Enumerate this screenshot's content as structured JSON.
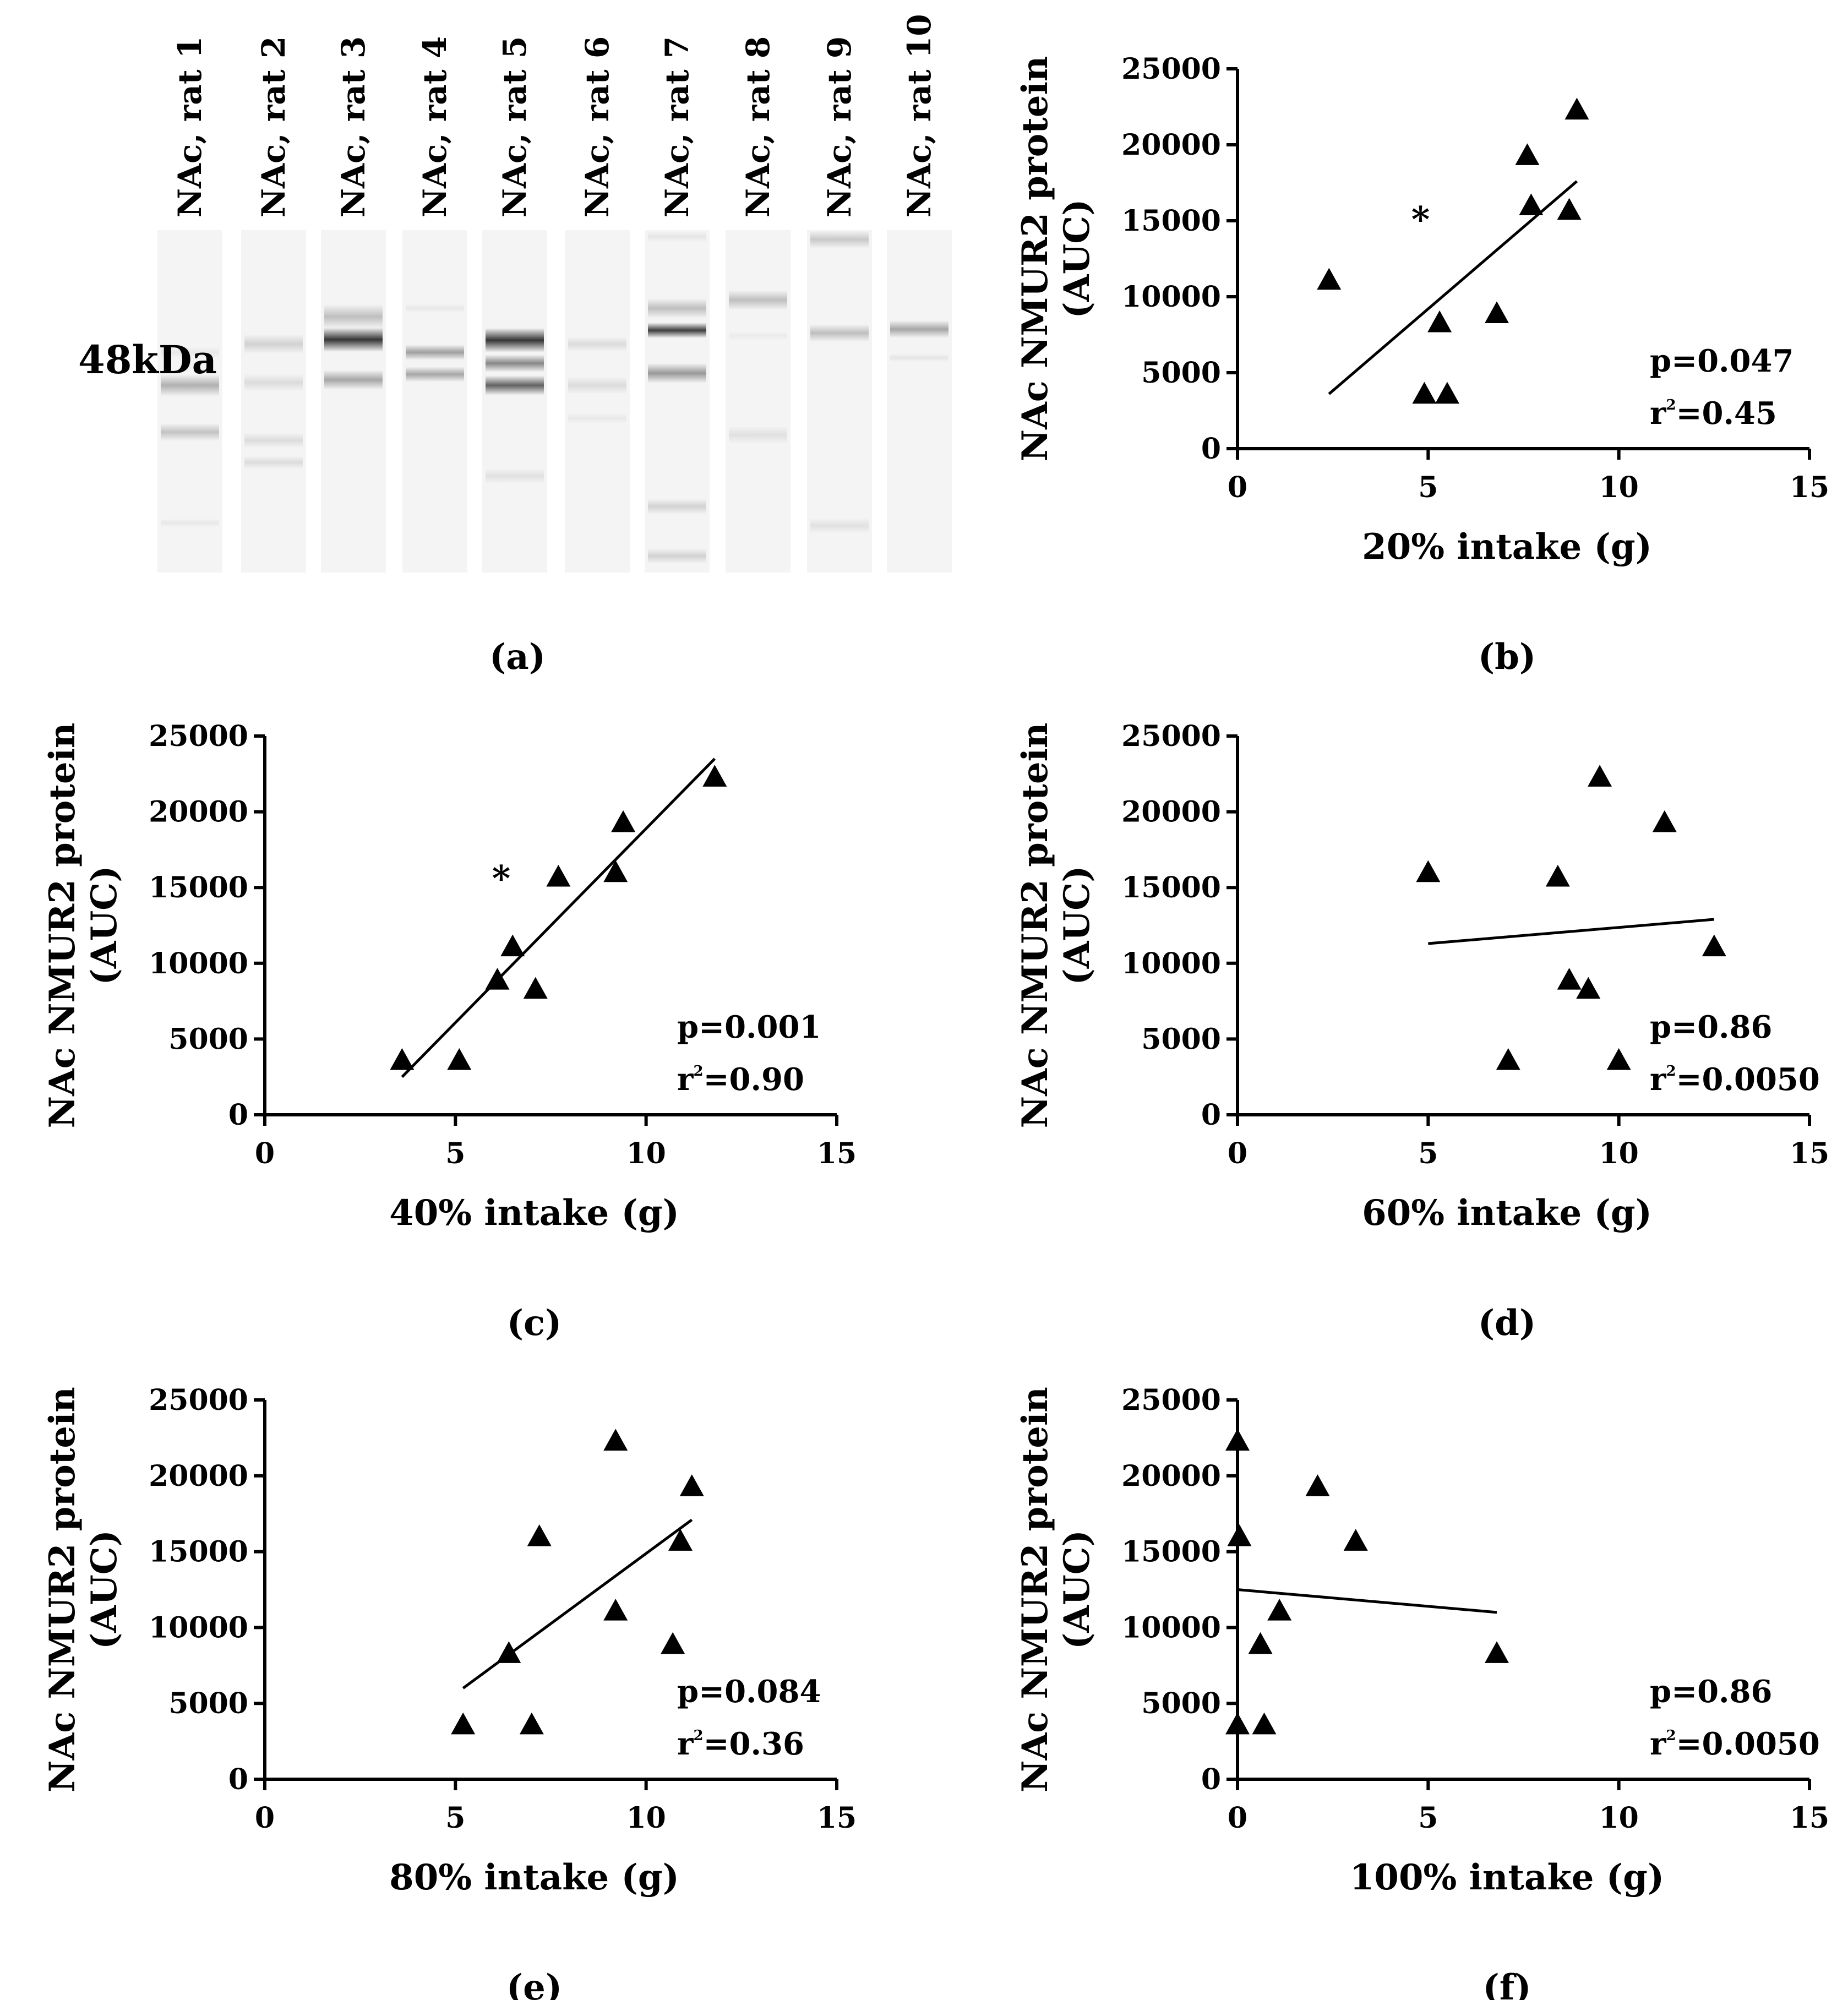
{
  "blot": {
    "size_marker": "48kDa",
    "panel_label": "(a)",
    "lane_labels": [
      "NAc, rat 1",
      "NAc, rat 2",
      "NAc, rat 3",
      "NAc, rat 4",
      "NAc, rat 5",
      "NAc, rat 6",
      "NAc, rat 7",
      "NAc, rat 8",
      "NAc, rat 9",
      "NAc, rat 10"
    ]
  },
  "chart_data": [
    {
      "type": "scatter",
      "panel_label": "(b)",
      "ylabel_line1": "NAc NMUR2 protein",
      "ylabel_line2": "(AUC)",
      "xlabel": "20% intake (g)",
      "xlim": [
        0,
        15
      ],
      "ylim": [
        0,
        25000
      ],
      "xticks": [
        "0",
        "5",
        "10",
        "15"
      ],
      "yticks": [
        "0",
        "5000",
        "10000",
        "15000",
        "20000",
        "25000"
      ],
      "points": [
        [
          2.4,
          11100
        ],
        [
          4.9,
          3600
        ],
        [
          5.3,
          8300
        ],
        [
          5.5,
          3600
        ],
        [
          6.8,
          8900
        ],
        [
          7.6,
          19300
        ],
        [
          7.7,
          16000
        ],
        [
          8.7,
          15700
        ],
        [
          8.9,
          22300
        ]
      ],
      "fit": [
        [
          2.4,
          3600
        ],
        [
          8.9,
          17600
        ]
      ],
      "asterisk": [
        4.8,
        14300
      ],
      "stats_p": "p=0.047",
      "stats_r_prefix": "r",
      "stats_r_sup": "2",
      "stats_r_value": "=0.45"
    },
    {
      "type": "scatter",
      "panel_label": "(c)",
      "ylabel_line1": "NAc NMUR2 protein",
      "ylabel_line2": "(AUC)",
      "xlabel": "40% intake (g)",
      "xlim": [
        0,
        15
      ],
      "ylim": [
        0,
        25000
      ],
      "xticks": [
        "0",
        "5",
        "10",
        "15"
      ],
      "yticks": [
        "0",
        "5000",
        "10000",
        "15000",
        "20000",
        "25000"
      ],
      "points": [
        [
          3.6,
          3600
        ],
        [
          5.1,
          3600
        ],
        [
          6.1,
          8900
        ],
        [
          6.5,
          11100
        ],
        [
          7.1,
          8300
        ],
        [
          7.7,
          15700
        ],
        [
          9.2,
          16000
        ],
        [
          9.4,
          19300
        ],
        [
          11.8,
          22300
        ]
      ],
      "fit": [
        [
          3.6,
          2500
        ],
        [
          11.8,
          23500
        ]
      ],
      "asterisk": [
        6.2,
        14800
      ],
      "stats_p": "p=0.001",
      "stats_r_prefix": "r",
      "stats_r_sup": "2",
      "stats_r_value": "=0.90"
    },
    {
      "type": "scatter",
      "panel_label": "(d)",
      "ylabel_line1": "NAc NMUR2 protein",
      "ylabel_line2": "(AUC)",
      "xlabel": "60% intake (g)",
      "xlim": [
        0,
        15
      ],
      "ylim": [
        0,
        25000
      ],
      "xticks": [
        "0",
        "5",
        "10",
        "15"
      ],
      "yticks": [
        "0",
        "5000",
        "10000",
        "15000",
        "20000",
        "25000"
      ],
      "points": [
        [
          5.0,
          16000
        ],
        [
          7.1,
          3600
        ],
        [
          8.4,
          15700
        ],
        [
          8.7,
          8900
        ],
        [
          9.2,
          8300
        ],
        [
          9.5,
          22300
        ],
        [
          10.0,
          3600
        ],
        [
          11.2,
          19300
        ],
        [
          12.5,
          11100
        ]
      ],
      "fit": [
        [
          5.0,
          11300
        ],
        [
          12.5,
          12900
        ]
      ],
      "asterisk": null,
      "stats_p": "p=0.86",
      "stats_r_prefix": "r",
      "stats_r_sup": "2",
      "stats_r_value": "=0.0050"
    },
    {
      "type": "scatter",
      "panel_label": "(e)",
      "ylabel_line1": "NAc NMUR2 protein",
      "ylabel_line2": "(AUC)",
      "xlabel": "80% intake (g)",
      "xlim": [
        0,
        15
      ],
      "ylim": [
        0,
        25000
      ],
      "xticks": [
        "0",
        "5",
        "10",
        "15"
      ],
      "yticks": [
        "0",
        "5000",
        "10000",
        "15000",
        "20000",
        "25000"
      ],
      "points": [
        [
          5.2,
          3600
        ],
        [
          6.4,
          8300
        ],
        [
          7.0,
          3600
        ],
        [
          7.2,
          16000
        ],
        [
          9.2,
          22300
        ],
        [
          9.2,
          11100
        ],
        [
          10.7,
          8900
        ],
        [
          10.9,
          15700
        ],
        [
          11.2,
          19300
        ]
      ],
      "fit": [
        [
          5.2,
          6000
        ],
        [
          11.2,
          17100
        ]
      ],
      "asterisk": null,
      "stats_p": "p=0.084",
      "stats_r_prefix": "r",
      "stats_r_sup": "2",
      "stats_r_value": "=0.36"
    },
    {
      "type": "scatter",
      "panel_label": "(f)",
      "ylabel_line1": "NAc NMUR2 protein",
      "ylabel_line2": "(AUC)",
      "xlabel": "100% intake (g)",
      "xlim": [
        0,
        15
      ],
      "ylim": [
        0,
        25000
      ],
      "xticks": [
        "0",
        "5",
        "10",
        "15"
      ],
      "yticks": [
        "0",
        "5000",
        "10000",
        "15000",
        "20000",
        "25000"
      ],
      "points": [
        [
          0.0,
          22300
        ],
        [
          0.05,
          16000
        ],
        [
          0.0,
          3600
        ],
        [
          0.6,
          8900
        ],
        [
          0.7,
          3600
        ],
        [
          1.1,
          11100
        ],
        [
          2.1,
          19300
        ],
        [
          3.1,
          15700
        ],
        [
          6.8,
          8300
        ]
      ],
      "fit": [
        [
          0.0,
          12500
        ],
        [
          6.8,
          11000
        ]
      ],
      "asterisk": null,
      "stats_p": "p=0.86",
      "stats_r_prefix": "r",
      "stats_r_sup": "2",
      "stats_r_value": "=0.0050"
    }
  ]
}
